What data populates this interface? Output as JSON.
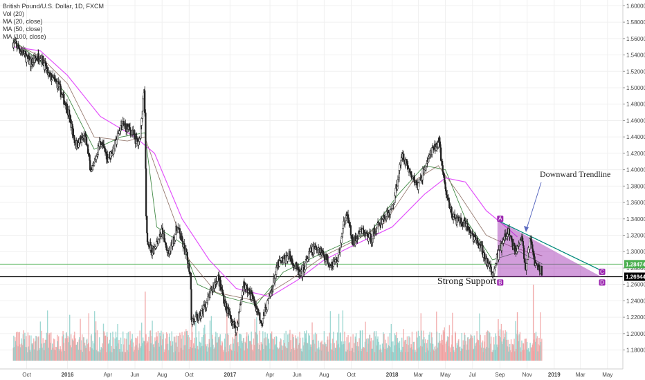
{
  "legend": {
    "title": "British Pound/U.S. Dollar, 1D, FXCM",
    "vol": "Vol (20)",
    "ma1": "MA (20, close)",
    "ma2": "MA (50, close)",
    "ma3": "MA (100, close)"
  },
  "price_tags": [
    {
      "label": "1.28474",
      "color": "#4caf50"
    },
    {
      "label": "1.26944",
      "color": "#000000"
    }
  ],
  "annotations": {
    "trendline": "Downward Trendline",
    "support": "Strong Support",
    "points": [
      "A",
      "B",
      "C",
      "D"
    ]
  },
  "colors": {
    "up": "#26a69a",
    "down": "#ef5350",
    "ma20": "#2e7d32",
    "ma50": "#8d6e63",
    "ma100": "#e040fb",
    "triangle": "#9c27b0",
    "trendline": "#00897b"
  },
  "chart_data": {
    "type": "line",
    "title": "British Pound/U.S. Dollar, 1D, FXCM",
    "x_ticks": [
      "Oct",
      "2016",
      "Apr",
      "Jun",
      "Aug",
      "Oct",
      "2017",
      "Apr",
      "Jun",
      "Aug",
      "Oct",
      "2018",
      "Mar",
      "May",
      "Jul",
      "Sep",
      "Nov",
      "2019",
      "Mar",
      "May"
    ],
    "y_ticks": [
      "1.60000",
      "1.58000",
      "1.56000",
      "1.54000",
      "1.52000",
      "1.50000",
      "1.48000",
      "1.46000",
      "1.44000",
      "1.42000",
      "1.40000",
      "1.38000",
      "1.36000",
      "1.34000",
      "1.32000",
      "1.30000",
      "1.28000",
      "1.26000",
      "1.24000",
      "1.22000",
      "1.20000",
      "1.18000"
    ],
    "ylim": [
      1.167,
      1.602
    ],
    "price_series": {
      "name": "GBPUSD",
      "points": [
        [
          "2015-09-01",
          1.555
        ],
        [
          "2015-09-20",
          1.545
        ],
        [
          "2015-10-10",
          1.53
        ],
        [
          "2015-11-01",
          1.54
        ],
        [
          "2015-11-20",
          1.515
        ],
        [
          "2015-12-10",
          1.505
        ],
        [
          "2016-01-01",
          1.475
        ],
        [
          "2016-01-20",
          1.43
        ],
        [
          "2016-02-10",
          1.44
        ],
        [
          "2016-02-25",
          1.395
        ],
        [
          "2016-03-15",
          1.435
        ],
        [
          "2016-04-01",
          1.415
        ],
        [
          "2016-04-15",
          1.425
        ],
        [
          "2016-05-01",
          1.455
        ],
        [
          "2016-05-20",
          1.45
        ],
        [
          "2016-06-10",
          1.43
        ],
        [
          "2016-06-23",
          1.5
        ],
        [
          "2016-06-27",
          1.32
        ],
        [
          "2016-07-10",
          1.3
        ],
        [
          "2016-08-01",
          1.325
        ],
        [
          "2016-08-15",
          1.295
        ],
        [
          "2016-09-05",
          1.33
        ],
        [
          "2016-09-25",
          1.295
        ],
        [
          "2016-10-05",
          1.27
        ],
        [
          "2016-10-07",
          1.215
        ],
        [
          "2016-10-25",
          1.22
        ],
        [
          "2016-11-15",
          1.245
        ],
        [
          "2016-12-05",
          1.27
        ],
        [
          "2016-12-25",
          1.23
        ],
        [
          "2017-01-16",
          1.205
        ],
        [
          "2017-02-01",
          1.26
        ],
        [
          "2017-02-20",
          1.245
        ],
        [
          "2017-03-14",
          1.215
        ],
        [
          "2017-04-01",
          1.245
        ],
        [
          "2017-04-20",
          1.285
        ],
        [
          "2017-05-15",
          1.295
        ],
        [
          "2017-06-10",
          1.27
        ],
        [
          "2017-07-01",
          1.3
        ],
        [
          "2017-07-20",
          1.305
        ],
        [
          "2017-08-15",
          1.285
        ],
        [
          "2017-09-01",
          1.29
        ],
        [
          "2017-09-20",
          1.35
        ],
        [
          "2017-10-05",
          1.31
        ],
        [
          "2017-10-25",
          1.325
        ],
        [
          "2017-11-15",
          1.315
        ],
        [
          "2017-12-10",
          1.34
        ],
        [
          "2018-01-01",
          1.35
        ],
        [
          "2018-01-25",
          1.42
        ],
        [
          "2018-02-15",
          1.39
        ],
        [
          "2018-03-01",
          1.38
        ],
        [
          "2018-03-25",
          1.415
        ],
        [
          "2018-04-17",
          1.435
        ],
        [
          "2018-05-01",
          1.375
        ],
        [
          "2018-05-20",
          1.34
        ],
        [
          "2018-06-10",
          1.335
        ],
        [
          "2018-07-01",
          1.32
        ],
        [
          "2018-07-20",
          1.305
        ],
        [
          "2018-08-15",
          1.272
        ],
        [
          "2018-08-30",
          1.3
        ],
        [
          "2018-09-20",
          1.325
        ],
        [
          "2018-10-05",
          1.3
        ],
        [
          "2018-10-20",
          1.32
        ],
        [
          "2018-10-30",
          1.275
        ],
        [
          "2018-11-08",
          1.315
        ],
        [
          "2018-11-20",
          1.285
        ],
        [
          "2018-12-05",
          1.275
        ]
      ]
    },
    "moving_averages": [
      {
        "name": "MA (20, close)",
        "points": [
          [
            "2015-09-01",
            1.558
          ],
          [
            "2015-11-01",
            1.532
          ],
          [
            "2016-01-01",
            1.49
          ],
          [
            "2016-03-01",
            1.425
          ],
          [
            "2016-05-01",
            1.44
          ],
          [
            "2016-06-23",
            1.445
          ],
          [
            "2016-07-20",
            1.33
          ],
          [
            "2016-09-15",
            1.31
          ],
          [
            "2016-10-20",
            1.26
          ],
          [
            "2016-12-20",
            1.245
          ],
          [
            "2017-03-01",
            1.235
          ],
          [
            "2017-05-01",
            1.275
          ],
          [
            "2017-07-15",
            1.295
          ],
          [
            "2017-09-15",
            1.31
          ],
          [
            "2017-11-15",
            1.325
          ],
          [
            "2018-01-15",
            1.37
          ],
          [
            "2018-03-15",
            1.405
          ],
          [
            "2018-05-01",
            1.4
          ],
          [
            "2018-06-15",
            1.34
          ],
          [
            "2018-08-15",
            1.29
          ],
          [
            "2018-10-15",
            1.3
          ],
          [
            "2018-12-05",
            1.285
          ]
        ]
      },
      {
        "name": "MA (50, close)",
        "points": [
          [
            "2015-09-01",
            1.555
          ],
          [
            "2015-11-01",
            1.538
          ],
          [
            "2016-01-01",
            1.505
          ],
          [
            "2016-03-01",
            1.44
          ],
          [
            "2016-05-15",
            1.435
          ],
          [
            "2016-06-23",
            1.44
          ],
          [
            "2016-08-01",
            1.38
          ],
          [
            "2016-10-01",
            1.29
          ],
          [
            "2016-12-01",
            1.25
          ],
          [
            "2017-03-01",
            1.24
          ],
          [
            "2017-05-15",
            1.265
          ],
          [
            "2017-08-01",
            1.295
          ],
          [
            "2017-10-15",
            1.315
          ],
          [
            "2017-12-15",
            1.335
          ],
          [
            "2018-02-15",
            1.385
          ],
          [
            "2018-04-15",
            1.405
          ],
          [
            "2018-06-01",
            1.37
          ],
          [
            "2018-08-01",
            1.32
          ],
          [
            "2018-10-01",
            1.305
          ],
          [
            "2018-12-05",
            1.295
          ]
        ]
      },
      {
        "name": "MA (100, close)",
        "points": [
          [
            "2015-09-01",
            1.55
          ],
          [
            "2015-11-01",
            1.545
          ],
          [
            "2016-01-01",
            1.515
          ],
          [
            "2016-03-15",
            1.465
          ],
          [
            "2016-06-01",
            1.44
          ],
          [
            "2016-07-15",
            1.42
          ],
          [
            "2016-09-15",
            1.34
          ],
          [
            "2016-11-15",
            1.29
          ],
          [
            "2017-01-15",
            1.255
          ],
          [
            "2017-04-01",
            1.245
          ],
          [
            "2017-06-01",
            1.265
          ],
          [
            "2017-08-01",
            1.29
          ],
          [
            "2017-10-15",
            1.31
          ],
          [
            "2018-01-01",
            1.33
          ],
          [
            "2018-03-15",
            1.37
          ],
          [
            "2018-05-01",
            1.39
          ],
          [
            "2018-06-15",
            1.385
          ],
          [
            "2018-08-01",
            1.35
          ],
          [
            "2018-09-15",
            1.33
          ],
          [
            "2018-10-10",
            1.318
          ]
        ]
      }
    ],
    "horizontal_lines": [
      {
        "label": "1.28474",
        "y": 1.28474
      },
      {
        "label": "1.26944",
        "y": 1.26944
      }
    ],
    "triangle": {
      "A": [
        "2018-08-27",
        1.338
      ],
      "B": [
        "2018-08-27",
        1.2695
      ],
      "C": [
        "2019-04-15",
        1.2775
      ],
      "D": [
        "2019-04-15",
        1.2695
      ]
    }
  }
}
